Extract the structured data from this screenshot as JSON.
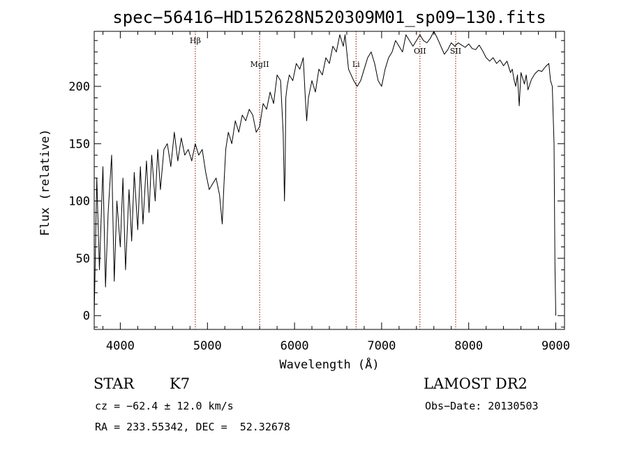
{
  "chart_data": {
    "type": "line",
    "title": "spec−56416−HD152628N520309M01_sp09−130.fits",
    "xlabel": "Wavelength (Å)",
    "ylabel": "Flux (relative)",
    "xlim": [
      3700,
      9100
    ],
    "ylim": [
      -12,
      248
    ],
    "x_ticks": [
      4000,
      5000,
      6000,
      7000,
      8000,
      9000
    ],
    "y_ticks": [
      0,
      50,
      100,
      150,
      200
    ],
    "grid": false,
    "line_color": "#000000",
    "series": [
      {
        "x": [
          3700,
          3730,
          3760,
          3800,
          3830,
          3860,
          3900,
          3930,
          3960,
          4000,
          4030,
          4060,
          4100,
          4130,
          4160,
          4200,
          4230,
          4260,
          4300,
          4330,
          4360,
          4400,
          4430,
          4460,
          4500,
          4540,
          4580,
          4620,
          4660,
          4700,
          4740,
          4780,
          4820,
          4860,
          4900,
          4940,
          4980,
          5020,
          5060,
          5100,
          5140,
          5170,
          5190,
          5210,
          5240,
          5280,
          5320,
          5360,
          5400,
          5440,
          5480,
          5520,
          5560,
          5600,
          5640,
          5680,
          5720,
          5760,
          5800,
          5840,
          5870,
          5885,
          5893,
          5900,
          5915,
          5940,
          5980,
          6020,
          6060,
          6100,
          6120,
          6140,
          6160,
          6200,
          6240,
          6280,
          6320,
          6360,
          6400,
          6440,
          6480,
          6520,
          6540,
          6560,
          6580,
          6600,
          6620,
          6650,
          6680,
          6720,
          6760,
          6800,
          6840,
          6880,
          6920,
          6960,
          7000,
          7040,
          7080,
          7120,
          7160,
          7200,
          7240,
          7280,
          7320,
          7360,
          7400,
          7440,
          7480,
          7520,
          7560,
          7600,
          7640,
          7680,
          7720,
          7760,
          7800,
          7840,
          7880,
          7920,
          7960,
          8000,
          8040,
          8080,
          8120,
          8160,
          8200,
          8240,
          8280,
          8320,
          8360,
          8400,
          8440,
          8480,
          8500,
          8520,
          8540,
          8560,
          8580,
          8600,
          8640,
          8660,
          8680,
          8720,
          8760,
          8800,
          8840,
          8880,
          8920,
          8940,
          8960,
          8980,
          8990,
          9000
        ],
        "values": [
          0,
          120,
          40,
          130,
          25,
          90,
          140,
          30,
          100,
          60,
          120,
          40,
          110,
          65,
          125,
          75,
          130,
          80,
          135,
          90,
          140,
          100,
          145,
          110,
          145,
          150,
          130,
          160,
          135,
          155,
          140,
          145,
          135,
          150,
          140,
          145,
          125,
          110,
          115,
          120,
          105,
          80,
          115,
          145,
          160,
          150,
          170,
          160,
          175,
          170,
          180,
          175,
          160,
          165,
          185,
          180,
          195,
          185,
          210,
          205,
          160,
          100,
          130,
          190,
          200,
          210,
          205,
          220,
          215,
          225,
          195,
          170,
          190,
          205,
          195,
          215,
          210,
          225,
          220,
          235,
          230,
          245,
          240,
          235,
          245,
          230,
          215,
          210,
          205,
          200,
          205,
          215,
          225,
          230,
          220,
          205,
          200,
          215,
          225,
          230,
          240,
          235,
          230,
          245,
          240,
          235,
          240,
          245,
          240,
          238,
          242,
          248,
          242,
          235,
          228,
          232,
          238,
          235,
          238,
          236,
          234,
          237,
          233,
          232,
          236,
          231,
          225,
          222,
          225,
          220,
          223,
          218,
          222,
          212,
          215,
          206,
          200,
          210,
          183,
          212,
          202,
          210,
          197,
          206,
          211,
          214,
          213,
          217,
          220,
          205,
          200,
          150,
          45,
          0
        ]
      }
    ],
    "line_markers": [
      {
        "label": "Hβ",
        "x": 4861
      },
      {
        "label": "MgII",
        "x": 5600
      },
      {
        "label": "Li",
        "x": 6707
      },
      {
        "label": "OII",
        "x": 7440
      },
      {
        "label": "SII",
        "x": 7850
      }
    ],
    "marker_color": "#8b0000"
  },
  "info": {
    "obj_class": "STAR",
    "subclass": "K7",
    "survey": "LAMOST DR2",
    "cz": "cz = −62.4 ± 12.0 km/s",
    "obs_date": "Obs−Date: 20130503",
    "coords": "RA = 233.55342, DEC =  52.32678"
  }
}
